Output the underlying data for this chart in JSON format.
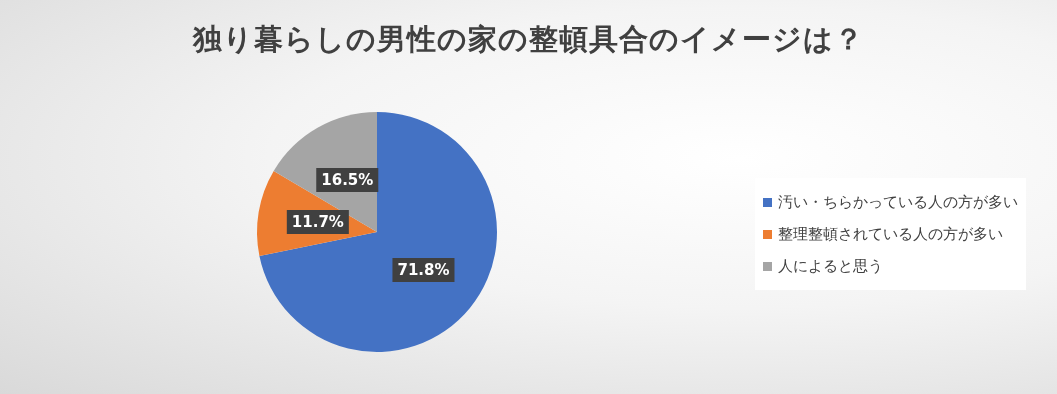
{
  "chart_data": {
    "type": "pie",
    "title": "独り暮らしの男性の家の整頓具合のイメージは？",
    "categories": [
      "汚い・ちらかっている人の方が多い",
      "整理整頓されている人の方が多い",
      "人によると思う"
    ],
    "values": [
      71.8,
      11.7,
      16.5
    ],
    "colors": [
      "#4472c4",
      "#ed7d31",
      "#a5a5a5"
    ],
    "value_labels": [
      "71.8%",
      "11.7%",
      "16.5%"
    ],
    "legend": "right"
  }
}
